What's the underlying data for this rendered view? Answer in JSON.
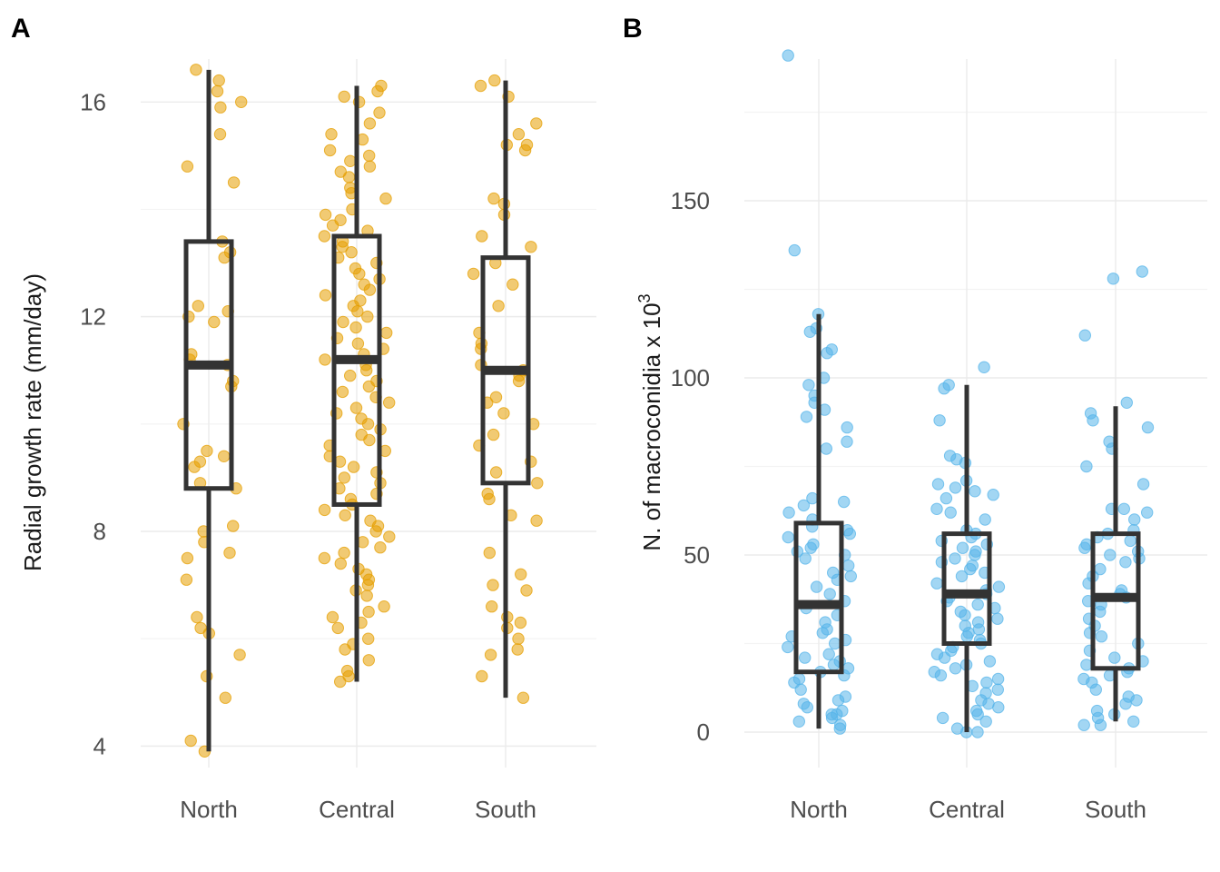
{
  "chart_data": [
    {
      "panel": "A",
      "type": "box",
      "categories": [
        "North",
        "Central",
        "South"
      ],
      "ylabel": "Radial growth rate (mm/day)",
      "xlabel": "",
      "ylim": [
        3.6,
        16.8
      ],
      "yticks": [
        4,
        8,
        12,
        16
      ],
      "grid": true,
      "point_color": "#E69F00",
      "boxes": [
        {
          "category": "North",
          "min": 3.9,
          "q1": 8.8,
          "median": 11.1,
          "q3": 13.4,
          "max": 16.6
        },
        {
          "category": "Central",
          "min": 5.2,
          "q1": 8.5,
          "median": 11.2,
          "q3": 13.5,
          "max": 16.3
        },
        {
          "category": "South",
          "min": 4.9,
          "q1": 8.9,
          "median": 11.0,
          "q3": 13.1,
          "max": 16.4
        }
      ],
      "points": [
        {
          "category": "North",
          "values": [
            16.4,
            16.6,
            16.2,
            16.0,
            15.9,
            15.4,
            14.8,
            14.5,
            13.4,
            13.2,
            13.1,
            12.2,
            12.1,
            12.0,
            11.9,
            11.3,
            11.2,
            11.1,
            10.8,
            10.7,
            10.0,
            9.5,
            9.4,
            9.3,
            9.2,
            8.9,
            8.8,
            8.1,
            8.0,
            7.8,
            7.6,
            7.5,
            7.1,
            6.4,
            6.2,
            6.1,
            5.7,
            5.3,
            4.9,
            4.1,
            3.9
          ]
        },
        {
          "category": "Central",
          "values": [
            16.3,
            16.2,
            16.1,
            16.0,
            15.8,
            15.6,
            15.4,
            15.3,
            15.1,
            15.0,
            14.9,
            14.8,
            14.7,
            14.6,
            14.4,
            14.3,
            14.2,
            14.0,
            13.9,
            13.8,
            13.7,
            13.6,
            13.5,
            13.4,
            13.3,
            13.2,
            13.1,
            13.0,
            12.9,
            12.8,
            12.7,
            12.6,
            12.5,
            12.4,
            12.3,
            12.2,
            12.1,
            12.0,
            11.9,
            11.8,
            11.7,
            11.6,
            11.5,
            11.4,
            11.3,
            11.2,
            11.1,
            11.0,
            10.9,
            10.8,
            10.7,
            10.6,
            10.5,
            10.4,
            10.3,
            10.2,
            10.1,
            10.0,
            9.9,
            9.8,
            9.7,
            9.6,
            9.5,
            9.4,
            9.3,
            9.2,
            9.1,
            9.0,
            8.9,
            8.8,
            8.7,
            8.6,
            8.5,
            8.4,
            8.3,
            8.2,
            8.1,
            8.0,
            7.9,
            7.8,
            7.7,
            7.6,
            7.5,
            7.4,
            7.3,
            7.2,
            7.1,
            7.0,
            6.9,
            6.8,
            6.6,
            6.5,
            6.4,
            6.3,
            6.2,
            6.0,
            5.9,
            5.8,
            5.6,
            5.4,
            5.3,
            5.2
          ]
        },
        {
          "category": "South",
          "values": [
            16.4,
            16.3,
            16.1,
            15.6,
            15.4,
            15.2,
            15.2,
            15.1,
            14.2,
            14.1,
            13.9,
            13.5,
            13.3,
            13.0,
            12.8,
            12.6,
            12.2,
            11.7,
            11.5,
            11.4,
            11.1,
            11.0,
            10.9,
            10.8,
            10.5,
            10.4,
            10.2,
            10.0,
            9.8,
            9.6,
            9.3,
            9.1,
            8.9,
            8.7,
            8.6,
            8.3,
            8.2,
            7.6,
            7.2,
            7.0,
            6.9,
            6.6,
            6.4,
            6.3,
            6.2,
            6.0,
            5.8,
            5.7,
            5.3,
            4.9
          ]
        }
      ]
    },
    {
      "panel": "B",
      "type": "box",
      "categories": [
        "North",
        "Central",
        "South"
      ],
      "ylabel": "N. of macroconidia x 10",
      "ylabel_superscript": "3",
      "xlabel": "",
      "ylim": [
        -10,
        190
      ],
      "yticks": [
        0,
        50,
        100,
        150
      ],
      "grid": true,
      "point_color": "#56B4E9",
      "boxes": [
        {
          "category": "North",
          "min": 1,
          "q1": 17,
          "median": 36,
          "q3": 59,
          "max": 118
        },
        {
          "category": "Central",
          "min": 0,
          "q1": 25,
          "median": 39,
          "q3": 56,
          "max": 98
        },
        {
          "category": "South",
          "min": 3,
          "q1": 18,
          "median": 38,
          "q3": 56,
          "max": 92
        }
      ],
      "points": [
        {
          "category": "North",
          "values": [
            191,
            136,
            118,
            114,
            113,
            108,
            107,
            100,
            98,
            95,
            93,
            91,
            89,
            86,
            82,
            80,
            66,
            65,
            64,
            62,
            60,
            58,
            57,
            56,
            55,
            53,
            52,
            51,
            50,
            49,
            47,
            45,
            44,
            43,
            41,
            39,
            37,
            35,
            33,
            31,
            29,
            28,
            27,
            26,
            25,
            24,
            22,
            21,
            20,
            19,
            18,
            17,
            16,
            15,
            14,
            12,
            10,
            9,
            8,
            7,
            6,
            5,
            5,
            4,
            3,
            2,
            1
          ]
        },
        {
          "category": "Central",
          "values": [
            103,
            98,
            97,
            88,
            78,
            77,
            76,
            71,
            70,
            69,
            68,
            67,
            66,
            63,
            62,
            60,
            57,
            56,
            55,
            54,
            53,
            52,
            51,
            50,
            49,
            48,
            47,
            46,
            45,
            44,
            42,
            41,
            40,
            39,
            38,
            37,
            36,
            35,
            34,
            33,
            32,
            31,
            30,
            29,
            28,
            27,
            26,
            25,
            24,
            23,
            22,
            21,
            20,
            19,
            18,
            17,
            16,
            15,
            14,
            13,
            12,
            11,
            9,
            8,
            7,
            6,
            5,
            4,
            3,
            1,
            0,
            0
          ]
        },
        {
          "category": "South",
          "values": [
            130,
            128,
            112,
            93,
            90,
            88,
            86,
            82,
            80,
            75,
            70,
            63,
            63,
            62,
            60,
            57,
            56,
            55,
            54,
            53,
            52,
            51,
            50,
            49,
            48,
            46,
            44,
            42,
            40,
            39,
            38,
            37,
            36,
            34,
            32,
            30,
            28,
            27,
            25,
            23,
            21,
            20,
            19,
            18,
            17,
            16,
            15,
            14,
            12,
            10,
            9,
            8,
            6,
            5,
            4,
            3,
            2,
            2
          ]
        }
      ]
    }
  ]
}
